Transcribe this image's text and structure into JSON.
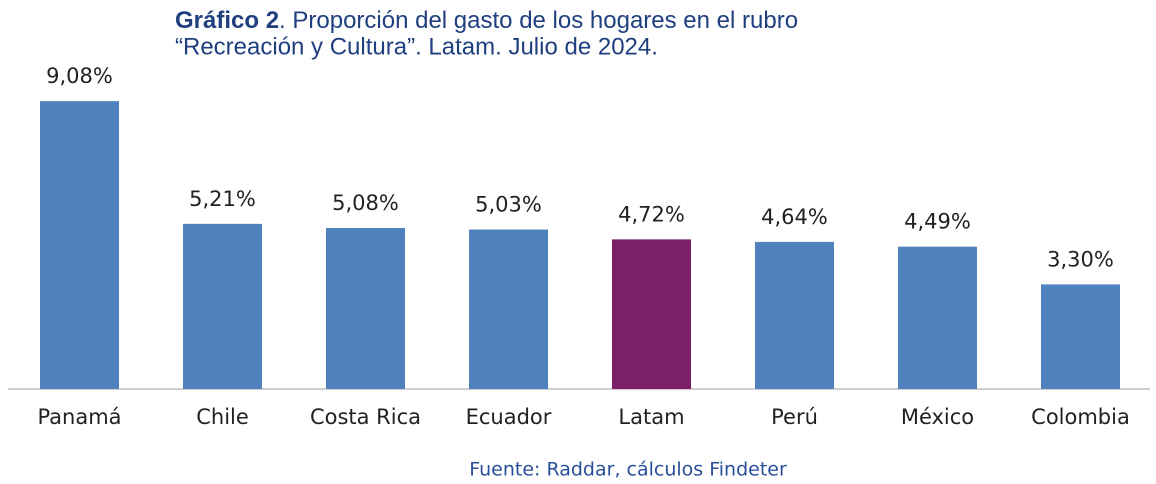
{
  "chart_data": {
    "type": "bar",
    "title_label": "Gráfico 2",
    "title_lines": [
      ". Proporción del gasto de los hogares en el rubro",
      "“Recreación y Cultura”. Latam. Julio de 2024."
    ],
    "categories": [
      "Panamá",
      "Chile",
      "Costa Rica",
      "Ecuador",
      "Latam",
      "Perú",
      "México",
      "Colombia"
    ],
    "values": [
      9.08,
      5.21,
      5.08,
      5.03,
      4.72,
      4.64,
      4.49,
      3.3
    ],
    "value_labels": [
      "9,08%",
      "5,21%",
      "5,08%",
      "5,03%",
      "4,72%",
      "4,64%",
      "4,49%",
      "3,30%"
    ],
    "colors": [
      "#4f81bd",
      "#4f81bd",
      "#4f81bd",
      "#4f81bd",
      "#7b2068",
      "#4f81bd",
      "#4f81bd",
      "#4f81bd"
    ],
    "source": "Fuente: Raddar, cálculos Findeter"
  }
}
